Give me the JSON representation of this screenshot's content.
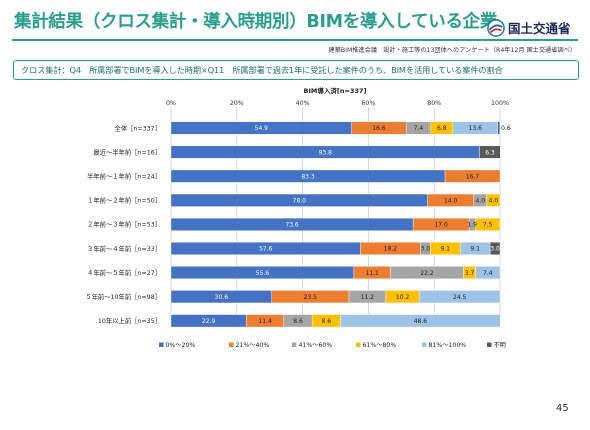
{
  "header": {
    "title": "集計結果（クロス集計・導入時期別）BIMを導入している企業",
    "logo_text": "国土交通省",
    "source": "建築BIM推進会議　設計・施工等の13団体へのアンケート（R4年12月 国土交通省調べ）"
  },
  "subtitle": "クロス集計：Q4　所属部署でBIMを導入した時期×Q11　所属部署で過去1年に受託した案件のうち、BIMを活用している案件の割合",
  "page_number": "45",
  "colors": {
    "title": "#2a9d8f",
    "series": [
      "#4472c4",
      "#ed7d31",
      "#a5a5a5",
      "#ffc000",
      "#9dc3e6",
      "#595959"
    ]
  },
  "chart_data": {
    "type": "bar",
    "orientation": "horizontal",
    "stacked": true,
    "title": "BIM導入済[n=337]",
    "xlim": [
      0,
      100
    ],
    "x_ticks": [
      "0%",
      "20%",
      "40%",
      "60%",
      "80%",
      "100%"
    ],
    "categories": [
      "全体［n=337］",
      "最近～半年前［n=16］",
      "半年前～１年前［n=24］",
      "１年前～２年前［n=50］",
      "２年前～３年前［n=53］",
      "３年前～４年前［n=33］",
      "４年前～５年前［n=27］",
      "５年前～10年前［n=98］",
      "10年以上前［n=35］"
    ],
    "series": [
      {
        "name": "0%～20%",
        "values": [
          54.9,
          93.8,
          83.3,
          78.0,
          73.6,
          57.6,
          55.6,
          30.6,
          22.9
        ]
      },
      {
        "name": "21%～40%",
        "values": [
          16.6,
          0,
          16.7,
          14.0,
          17.0,
          18.2,
          11.1,
          23.5,
          11.4
        ]
      },
      {
        "name": "41%～60%",
        "values": [
          7.4,
          0,
          0,
          4.0,
          1.9,
          3.0,
          22.2,
          11.2,
          8.6
        ]
      },
      {
        "name": "61%～80%",
        "values": [
          6.8,
          0,
          0,
          4.0,
          7.5,
          9.1,
          3.7,
          10.2,
          8.6
        ]
      },
      {
        "name": "81%～100%",
        "values": [
          13.6,
          0,
          0,
          0,
          0,
          9.1,
          7.4,
          24.5,
          48.6
        ]
      },
      {
        "name": "不明",
        "values": [
          0.6,
          6.3,
          0,
          0,
          0,
          3.0,
          0,
          0,
          0
        ]
      }
    ],
    "label_text": [
      [
        "54.9",
        "16.6",
        "7.4",
        "6.8",
        "13.6",
        "0.6"
      ],
      [
        "93.8",
        "",
        "",
        "",
        "",
        "6.3"
      ],
      [
        "83.3",
        "16.7",
        "",
        "",
        "",
        ""
      ],
      [
        "78.0",
        "14.0",
        "4.0",
        "4.0",
        "",
        ""
      ],
      [
        "73.6",
        "17.0",
        "1.9",
        "7.5",
        "",
        ""
      ],
      [
        "57.6",
        "18.2",
        "3.0",
        "9.1",
        "9.1",
        "3.0"
      ],
      [
        "55.6",
        "11.1",
        "22.2",
        "3.7",
        "7.4",
        ""
      ],
      [
        "30.6",
        "23.5",
        "11.2",
        "10.2",
        "24.5",
        ""
      ],
      [
        "22.9",
        "11.4",
        "8.6",
        "8.6",
        "48.6",
        ""
      ]
    ],
    "grid": true,
    "legend_position": "bottom"
  }
}
